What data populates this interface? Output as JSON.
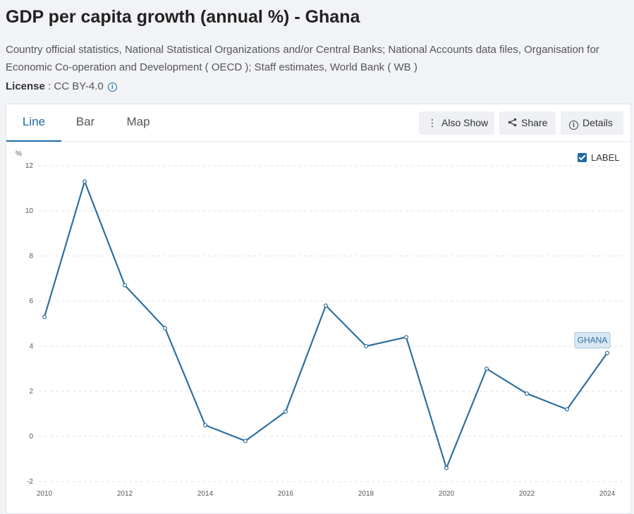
{
  "page": {
    "title": "GDP per capita growth (annual %) - Ghana",
    "sources": "Country official statistics, National Statistical Organizations and/or Central Banks; National Accounts data files, Organisation for Economic Co-operation and Development ( OECD ); Staff estimates, World Bank ( WB )",
    "license_label": "License",
    "license_sep": " : ",
    "license_value": "CC BY-4.0"
  },
  "tabs": [
    {
      "label": "Line",
      "active": true
    },
    {
      "label": "Bar",
      "active": false
    },
    {
      "label": "Map",
      "active": false
    }
  ],
  "toolbar": {
    "also_show": "Also Show",
    "share": "Share",
    "details": "Details"
  },
  "label_toggle": {
    "text": "LABEL",
    "checked": true
  },
  "colors": {
    "line": "#2f6f9f",
    "accent": "#1f6aa5",
    "label_bg": "#d9e8f3"
  },
  "icons": [
    "info-icon",
    "more-vertical-icon",
    "share-icon",
    "details-info-icon",
    "checkbox-icon"
  ],
  "chart_data": {
    "type": "line",
    "ylabel": "%",
    "ylim": [
      -2,
      12
    ],
    "yticks": [
      -2,
      0,
      2,
      4,
      6,
      8,
      10,
      12
    ],
    "xlim": [
      2010,
      2024
    ],
    "xticks": [
      2010,
      2012,
      2014,
      2016,
      2018,
      2020,
      2022,
      2024
    ],
    "grid": true,
    "series": [
      {
        "name": "GHANA",
        "x": [
          2010,
          2011,
          2012,
          2013,
          2014,
          2015,
          2016,
          2017,
          2018,
          2019,
          2020,
          2021,
          2022,
          2023,
          2024
        ],
        "values": [
          5.3,
          11.3,
          6.7,
          4.8,
          0.5,
          -0.2,
          1.1,
          5.8,
          4.0,
          4.4,
          -1.4,
          3.0,
          1.9,
          1.2,
          3.7
        ]
      }
    ]
  }
}
